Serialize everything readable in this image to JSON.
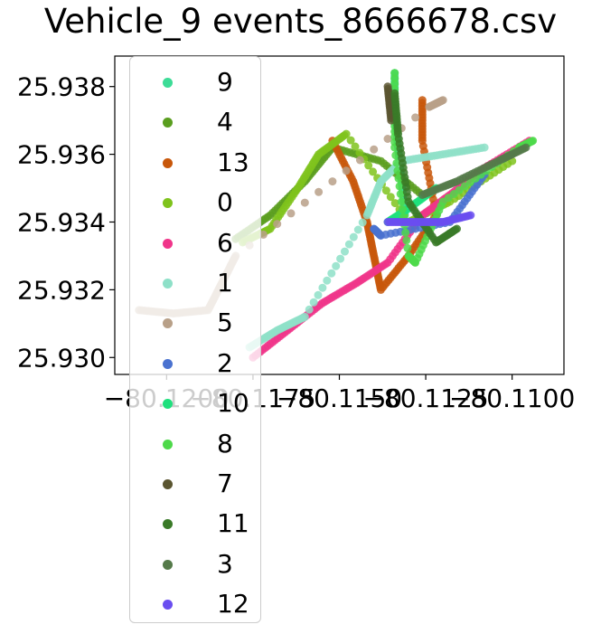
{
  "chart_data": {
    "type": "scatter",
    "title": "Vehicle_9 events_8666678.csv",
    "xlabel": "",
    "ylabel": "",
    "xlim": [
      -80.1215,
      -80.1085
    ],
    "ylim": [
      25.9295,
      25.9389
    ],
    "x_ticks": [
      -80.12,
      -80.1175,
      -80.115,
      -80.1125,
      -80.11
    ],
    "x_tick_labels": [
      "−80.1200",
      "−80.1175",
      "−80.1150",
      "−80.1125",
      "−80.1100"
    ],
    "y_ticks": [
      25.93,
      25.932,
      25.934,
      25.936,
      25.938
    ],
    "y_tick_labels": [
      "25.930",
      "25.932",
      "25.934",
      "25.936",
      "25.938"
    ],
    "grid": false,
    "legend_placement": "upper-left, overflowing below the axes",
    "series": [
      {
        "name": "9",
        "color": "#3ddc97",
        "points": [
          [
            -80.1134,
            25.9384
          ],
          [
            -80.1134,
            25.9372
          ],
          [
            -80.1133,
            25.9362
          ],
          [
            -80.1132,
            25.9352
          ],
          [
            -80.1131,
            25.9342
          ]
        ]
      },
      {
        "name": "4",
        "color": "#5a9e1f",
        "points": [
          [
            -80.118,
            25.9335
          ],
          [
            -80.117,
            25.9342
          ],
          [
            -80.116,
            25.9352
          ],
          [
            -80.1152,
            25.9362
          ],
          [
            -80.1138,
            25.9358
          ],
          [
            -80.1126,
            25.9348
          ]
        ]
      },
      {
        "name": "13",
        "color": "#c8570a",
        "points": [
          [
            -80.1152,
            25.9364
          ],
          [
            -80.1146,
            25.9352
          ],
          [
            -80.1142,
            25.934
          ],
          [
            -80.114,
            25.933
          ],
          [
            -80.1138,
            25.932
          ],
          [
            -80.113,
            25.933
          ],
          [
            -80.1122,
            25.9342
          ],
          [
            -80.1126,
            25.9364
          ],
          [
            -80.1126,
            25.9376
          ]
        ]
      },
      {
        "name": "0",
        "color": "#7fc31c",
        "points": [
          [
            -80.1178,
            25.9334
          ],
          [
            -80.117,
            25.9338
          ],
          [
            -80.1162,
            25.935
          ],
          [
            -80.1156,
            25.936
          ],
          [
            -80.1148,
            25.9366
          ],
          [
            -80.113,
            25.934
          ],
          [
            -80.1118,
            25.9346
          ],
          [
            -80.11,
            25.9358
          ]
        ]
      },
      {
        "name": "6",
        "color": "#f0358a",
        "points": [
          [
            -80.1175,
            25.93
          ],
          [
            -80.1165,
            25.9308
          ],
          [
            -80.1155,
            25.9316
          ],
          [
            -80.1145,
            25.9322
          ],
          [
            -80.1136,
            25.9328
          ],
          [
            -80.1126,
            25.9342
          ],
          [
            -80.1118,
            25.9348
          ],
          [
            -80.1108,
            25.9356
          ],
          [
            -80.1095,
            25.9364
          ]
        ]
      },
      {
        "name": "1",
        "color": "#8ee0c8",
        "points": [
          [
            -80.1176,
            25.9303
          ],
          [
            -80.1168,
            25.9308
          ],
          [
            -80.116,
            25.9312
          ],
          [
            -80.1142,
            25.9342
          ],
          [
            -80.1138,
            25.9352
          ],
          [
            -80.1132,
            25.9358
          ],
          [
            -80.112,
            25.936
          ],
          [
            -80.1108,
            25.9362
          ]
        ]
      },
      {
        "name": "5",
        "color": "#b8a088",
        "points": [
          [
            -80.1208,
            25.9314
          ],
          [
            -80.1198,
            25.9313
          ],
          [
            -80.1188,
            25.9314
          ],
          [
            -80.1184,
            25.9322
          ],
          [
            -80.118,
            25.933
          ],
          [
            -80.1124,
            25.9374
          ],
          [
            -80.112,
            25.9376
          ]
        ]
      },
      {
        "name": "2",
        "color": "#4a72d0",
        "points": [
          [
            -80.114,
            25.9338
          ],
          [
            -80.1138,
            25.9336
          ],
          [
            -80.1118,
            25.934
          ],
          [
            -80.1108,
            25.9354
          ]
        ]
      },
      {
        "name": "10",
        "color": "#1fe07d",
        "points": [
          [
            -80.1136,
            25.934
          ],
          [
            -80.113,
            25.9344
          ],
          [
            -80.1122,
            25.935
          ]
        ]
      },
      {
        "name": "8",
        "color": "#4ed94a",
        "points": [
          [
            -80.1134,
            25.9384
          ],
          [
            -80.1134,
            25.9362
          ],
          [
            -80.113,
            25.933
          ],
          [
            -80.1128,
            25.9328
          ],
          [
            -80.112,
            25.9346
          ],
          [
            -80.1098,
            25.9362
          ],
          [
            -80.1094,
            25.9364
          ]
        ]
      },
      {
        "name": "7",
        "color": "#5a5530",
        "points": [
          [
            -80.1136,
            25.938
          ],
          [
            -80.1135,
            25.937
          ]
        ]
      },
      {
        "name": "11",
        "color": "#3a7a28",
        "points": [
          [
            -80.1134,
            25.9378
          ],
          [
            -80.1133,
            25.9366
          ],
          [
            -80.113,
            25.9346
          ],
          [
            -80.1122,
            25.9334
          ],
          [
            -80.1116,
            25.9338
          ]
        ]
      },
      {
        "name": "3",
        "color": "#557a4a",
        "points": [
          [
            -80.1126,
            25.9348
          ],
          [
            -80.1116,
            25.9352
          ],
          [
            -80.1104,
            25.9358
          ],
          [
            -80.1096,
            25.9362
          ]
        ]
      },
      {
        "name": "12",
        "color": "#6a4ef0",
        "points": [
          [
            -80.1136,
            25.934
          ],
          [
            -80.1128,
            25.934
          ],
          [
            -80.112,
            25.934
          ],
          [
            -80.1112,
            25.9342
          ]
        ]
      }
    ]
  }
}
